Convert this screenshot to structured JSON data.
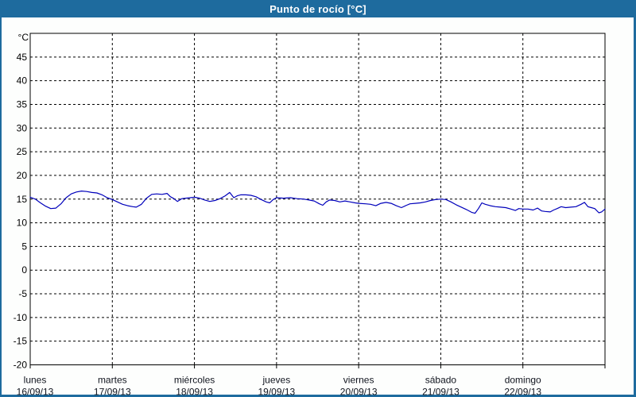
{
  "header": {
    "title": "Punto de rocío [°C]"
  },
  "colors": {
    "frame": "#1e6b9e",
    "title_text": "#ffffff",
    "content_bg": "#fdfefd",
    "plot_bg": "#ffffff",
    "axis": "#000000",
    "grid": "#000000",
    "label": "#000000",
    "line": "#0000bb"
  },
  "chart_data": {
    "type": "line",
    "title": "Punto de rocío [°C]",
    "xlabel": "",
    "ylabel": "°C",
    "unit_label": "°C",
    "ylim": [
      -20,
      50
    ],
    "yticks": [
      45,
      40,
      35,
      30,
      25,
      20,
      15,
      10,
      5,
      0,
      -5,
      -10,
      -15,
      -20
    ],
    "x_hours_range": [
      0,
      168
    ],
    "x_day_tick_hours": [
      0,
      24,
      48,
      72,
      96,
      120,
      144,
      168
    ],
    "grid": "dashed-on",
    "legend_position": "none",
    "days": [
      {
        "name": "lunes",
        "date": "16/09/13",
        "start_hour": 0
      },
      {
        "name": "martes",
        "date": "17/09/13",
        "start_hour": 24
      },
      {
        "name": "miércoles",
        "date": "18/09/13",
        "start_hour": 48
      },
      {
        "name": "jueves",
        "date": "19/09/13",
        "start_hour": 72
      },
      {
        "name": "viernes",
        "date": "20/09/13",
        "start_hour": 96
      },
      {
        "name": "sábado",
        "date": "21/09/13",
        "start_hour": 120
      },
      {
        "name": "domingo",
        "date": "22/09/13",
        "start_hour": 144
      }
    ],
    "series": [
      {
        "name": "Punto de rocío",
        "color": "#0000bb",
        "points_hour_degC": [
          [
            0,
            15.4
          ],
          [
            1.5,
            15.0
          ],
          [
            3,
            14.2
          ],
          [
            4.5,
            13.5
          ],
          [
            6,
            13.0
          ],
          [
            7.5,
            13.1
          ],
          [
            9,
            14.0
          ],
          [
            10.5,
            15.3
          ],
          [
            12,
            16.1
          ],
          [
            13.5,
            16.5
          ],
          [
            15,
            16.7
          ],
          [
            16.5,
            16.6
          ],
          [
            18,
            16.4
          ],
          [
            19.5,
            16.3
          ],
          [
            21,
            15.9
          ],
          [
            22.5,
            15.3
          ],
          [
            24,
            14.9
          ],
          [
            25.5,
            14.4
          ],
          [
            27,
            13.9
          ],
          [
            28.5,
            13.6
          ],
          [
            30,
            13.4
          ],
          [
            31,
            13.3
          ],
          [
            32.5,
            13.9
          ],
          [
            34,
            15.2
          ],
          [
            35.5,
            16.0
          ],
          [
            37,
            16.1
          ],
          [
            38.5,
            16.0
          ],
          [
            40,
            16.2
          ],
          [
            41,
            15.5
          ],
          [
            42,
            15.1
          ],
          [
            43,
            14.5
          ],
          [
            44.3,
            15.1
          ],
          [
            45.5,
            15.2
          ],
          [
            46.8,
            15.3
          ],
          [
            48,
            15.4
          ],
          [
            49.5,
            15.2
          ],
          [
            51,
            14.8
          ],
          [
            52.5,
            14.5
          ],
          [
            54,
            14.7
          ],
          [
            55.5,
            15.1
          ],
          [
            57,
            15.7
          ],
          [
            58.3,
            16.4
          ],
          [
            59.5,
            15.3
          ],
          [
            60.5,
            15.7
          ],
          [
            61.5,
            15.9
          ],
          [
            63,
            15.9
          ],
          [
            64.5,
            15.8
          ],
          [
            66,
            15.5
          ],
          [
            67.5,
            14.9
          ],
          [
            69,
            14.4
          ],
          [
            70,
            14.2
          ],
          [
            71,
            14.9
          ],
          [
            72,
            15.3
          ],
          [
            74,
            15.2
          ],
          [
            76,
            15.3
          ],
          [
            78,
            15.1
          ],
          [
            80,
            15.0
          ],
          [
            81.5,
            14.8
          ],
          [
            83,
            14.6
          ],
          [
            84.5,
            14.0
          ],
          [
            85.5,
            13.7
          ],
          [
            86.5,
            14.4
          ],
          [
            87.5,
            14.8
          ],
          [
            89,
            14.7
          ],
          [
            90.5,
            14.4
          ],
          [
            92,
            14.6
          ],
          [
            93.5,
            14.4
          ],
          [
            95,
            14.2
          ],
          [
            96,
            14.1
          ],
          [
            98,
            14.0
          ],
          [
            99.5,
            13.9
          ],
          [
            101,
            13.6
          ],
          [
            102.5,
            14.1
          ],
          [
            104,
            14.3
          ],
          [
            105.5,
            14.1
          ],
          [
            107,
            13.6
          ],
          [
            108.5,
            13.2
          ],
          [
            110,
            13.7
          ],
          [
            111,
            14.0
          ],
          [
            112.5,
            14.1
          ],
          [
            114,
            14.2
          ],
          [
            115.5,
            14.4
          ],
          [
            117,
            14.7
          ],
          [
            118.5,
            14.9
          ],
          [
            120,
            15.0
          ],
          [
            121.5,
            14.9
          ],
          [
            123,
            14.4
          ],
          [
            124.5,
            13.8
          ],
          [
            126,
            13.3
          ],
          [
            127.5,
            12.8
          ],
          [
            129,
            12.2
          ],
          [
            130,
            12.0
          ],
          [
            131,
            13.0
          ],
          [
            132,
            14.2
          ],
          [
            133,
            13.9
          ],
          [
            134.5,
            13.6
          ],
          [
            136,
            13.4
          ],
          [
            137.5,
            13.3
          ],
          [
            139,
            13.2
          ],
          [
            140.5,
            12.9
          ],
          [
            141.8,
            12.6
          ],
          [
            142.8,
            13.0
          ],
          [
            144,
            12.9
          ],
          [
            145.5,
            12.9
          ],
          [
            147,
            12.7
          ],
          [
            148.3,
            13.1
          ],
          [
            149.5,
            12.5
          ],
          [
            150.5,
            12.4
          ],
          [
            152,
            12.3
          ],
          [
            153,
            12.7
          ],
          [
            154,
            13.0
          ],
          [
            155.2,
            13.4
          ],
          [
            156.5,
            13.2
          ],
          [
            158,
            13.3
          ],
          [
            159.5,
            13.4
          ],
          [
            161,
            13.9
          ],
          [
            162,
            14.3
          ],
          [
            163,
            13.4
          ],
          [
            164,
            13.2
          ],
          [
            165,
            13.0
          ],
          [
            166.2,
            12.1
          ],
          [
            167,
            12.3
          ],
          [
            168,
            12.9
          ]
        ]
      }
    ]
  }
}
